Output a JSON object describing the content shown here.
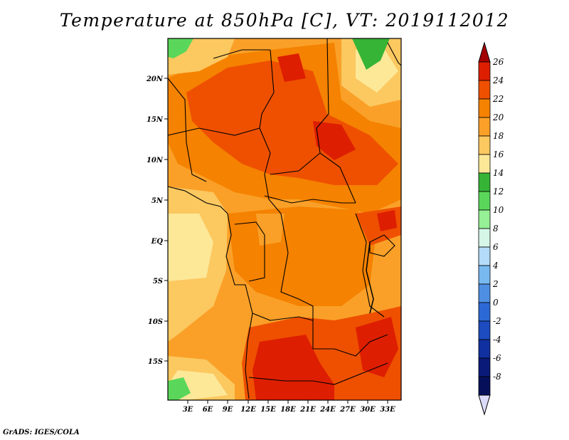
{
  "title": "Temperature at 850hPa [C], VT: 2019112012",
  "footer": "GrADS: IGES/COLA",
  "map": {
    "lat_labels": [
      "20N",
      "15N",
      "10N",
      "5N",
      "EQ",
      "5S",
      "10S",
      "15S"
    ],
    "lon_labels": [
      "3E",
      "6E",
      "9E",
      "12E",
      "15E",
      "18E",
      "21E",
      "24E",
      "27E",
      "30E",
      "33E"
    ]
  },
  "colorbar": {
    "levels": [
      "26",
      "24",
      "22",
      "20",
      "18",
      "16",
      "14",
      "12",
      "10",
      "8",
      "6",
      "4",
      "2",
      "0",
      "-2",
      "-4",
      "-6",
      "-8"
    ],
    "colors": [
      "#a50000",
      "#de1e00",
      "#ee5000",
      "#f58200",
      "#faa028",
      "#fcc860",
      "#fde898",
      "#35b435",
      "#5ad75a",
      "#96f096",
      "#d6f6e8",
      "#b4dcfa",
      "#78b9f0",
      "#4e8fe3",
      "#2c69d6",
      "#1d4bc0",
      "#1030a0",
      "#0a1a78",
      "#06105a",
      "#dcdcfa"
    ]
  }
}
